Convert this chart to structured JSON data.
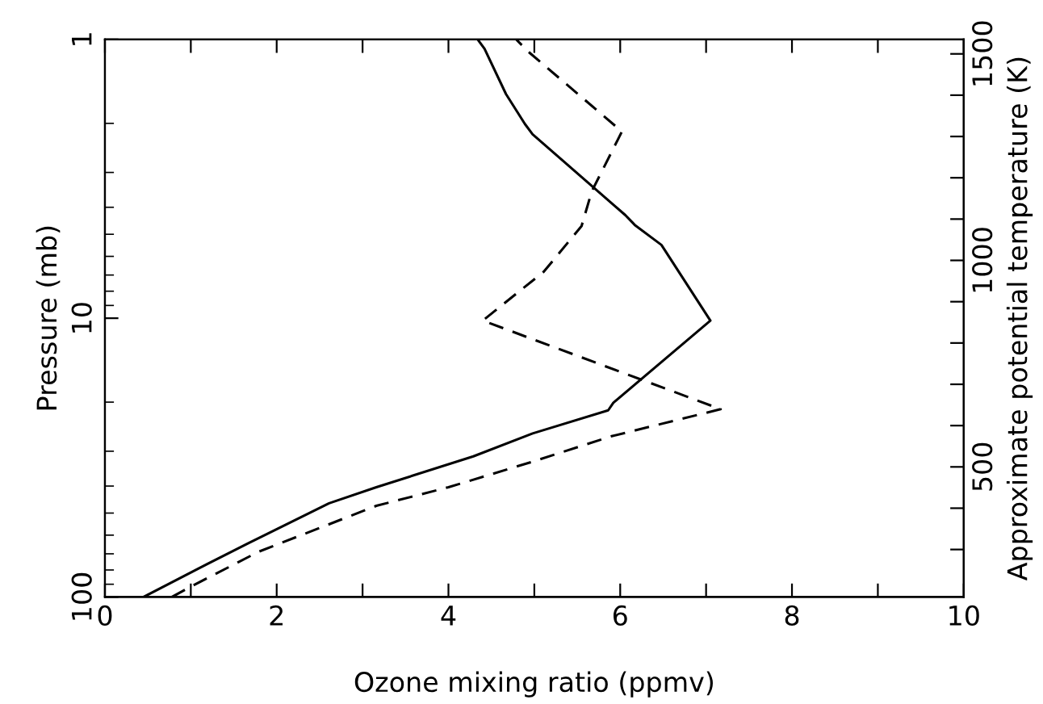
{
  "chart_data": {
    "type": "line",
    "xlabel": "Ozone mixing ratio (ppmv)",
    "ylabel": "Pressure (mb)",
    "y2label": "Approximate potential temperature (K)",
    "log": "y",
    "grid": false,
    "legend": false,
    "marker": "none",
    "xlim": [
      0,
      10
    ],
    "xticks": [
      0,
      {
        "value": 1,
        "label": null
      },
      2,
      {
        "value": 3,
        "label": null
      },
      4,
      {
        "value": 5,
        "label": null
      },
      6,
      {
        "value": 7,
        "label": null
      },
      8,
      {
        "value": 9,
        "label": null
      },
      10
    ],
    "ylim": [
      100,
      1
    ],
    "yticks": [
      1,
      10,
      100
    ],
    "y2lim": [
      185,
      1535
    ],
    "y2ticks": [
      {
        "value": 300,
        "label": null
      },
      {
        "value": 400,
        "label": null
      },
      500,
      {
        "value": 600,
        "label": null
      },
      {
        "value": 700,
        "label": null
      },
      {
        "value": 800,
        "label": null
      },
      {
        "value": 900,
        "label": null
      },
      1000,
      {
        "value": 1100,
        "label": null
      },
      {
        "value": 1200,
        "label": null
      },
      {
        "value": 1300,
        "label": null
      },
      {
        "value": 1400,
        "label": null
      },
      1500
    ],
    "series": [
      {
        "color": "#000000",
        "line_style": "solid",
        "x": [
          0.45,
          1.1,
          1.66,
          2.61,
          3.16,
          4.29,
          4.98,
          5.86,
          5.92,
          7.05,
          6.48,
          6.17,
          6.06,
          4.98,
          4.89,
          4.67,
          4.42,
          4.34
        ],
        "values": [
          100,
          78.7,
          64.4,
          46.1,
          40.4,
          31.3,
          25.9,
          21.4,
          20.1,
          10.2,
          5.46,
          4.63,
          4.27,
          2.19,
          2.01,
          1.57,
          1.08,
          1
        ]
      },
      {
        "color": "#000000",
        "line_style": "dashed",
        "x": [
          0.78,
          1.0,
          1.79,
          3.16,
          4.0,
          4.98,
          5.9,
          7.17,
          4.4,
          5.11,
          5.55,
          5.67,
          6.02,
          4.92,
          4.79
        ],
        "values": [
          100,
          91.8,
          68.8,
          47.1,
          40.4,
          32.7,
          26.5,
          21.2,
          10.2,
          6.81,
          4.67,
          3.5,
          2.14,
          1.1,
          1
        ]
      }
    ]
  }
}
